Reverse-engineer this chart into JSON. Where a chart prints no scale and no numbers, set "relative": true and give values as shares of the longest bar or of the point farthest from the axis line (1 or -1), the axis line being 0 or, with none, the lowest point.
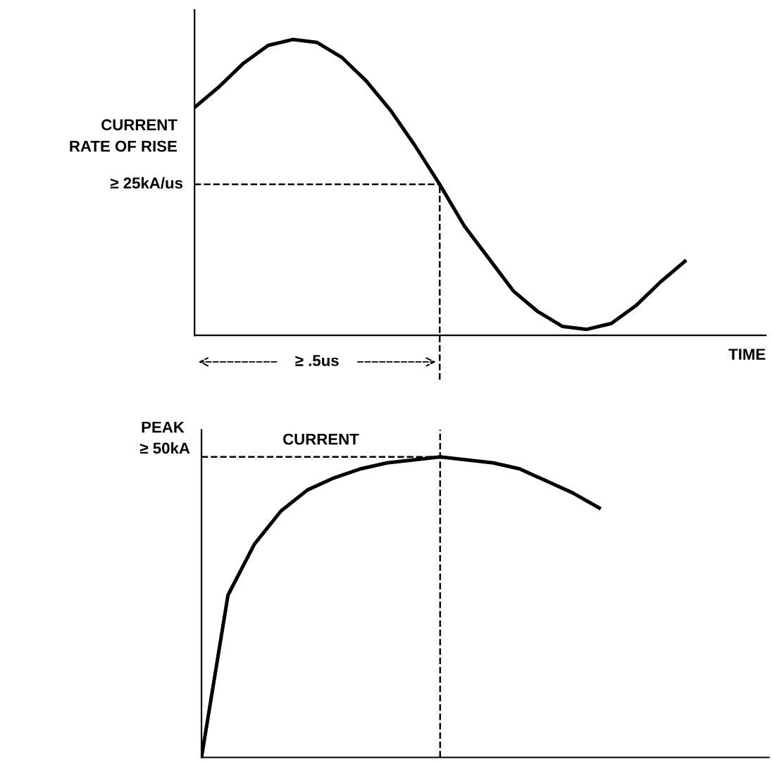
{
  "chart_data": [
    {
      "type": "line",
      "relative": true,
      "ylabel": "CURRENT\nRATE OF RISE",
      "xlabel": "TIME",
      "categories": [
        null,
        null,
        null,
        null,
        null,
        null,
        null,
        null,
        null,
        null,
        null,
        null,
        null,
        null,
        null,
        null,
        null,
        null,
        null,
        null,
        null
      ],
      "series": [
        {
          "color": "#000000",
          "values": [
            0.77,
            0.84,
            0.92,
            0.98,
            1,
            0.99,
            0.94,
            0.86,
            0.76,
            0.64,
            0.51,
            0.37,
            0.26,
            0.15,
            0.08,
            0.03,
            0.02,
            0.04,
            0.1,
            0.18,
            0.25
          ]
        }
      ],
      "ref_lines": [
        {
          "axis": "y",
          "value": 0.51,
          "label": "≥ 25kA/us",
          "line_style": "dashed",
          "color": "#000000"
        }
      ],
      "annotations": [
        "≥ .5us"
      ],
      "grid": false,
      "legend": false,
      "marker": "none",
      "line_style": "solid"
    },
    {
      "type": "line",
      "relative": true,
      "ylabel": "PEAK",
      "categories": [
        null,
        null,
        null,
        null,
        null,
        null,
        null,
        null,
        null,
        null,
        null,
        null,
        null,
        null,
        null,
        null
      ],
      "series": [
        {
          "color": "#000000",
          "values": [
            0,
            0.54,
            0.71,
            0.82,
            0.89,
            0.93,
            0.96,
            0.98,
            0.99,
            1,
            0.99,
            0.98,
            0.96,
            0.92,
            0.88,
            0.83
          ]
        }
      ],
      "ref_lines": [
        {
          "axis": "y",
          "value": 1,
          "label": "≥ 50kA",
          "line_style": "dashed",
          "color": "#000000"
        }
      ],
      "annotations": [
        "CURRENT"
      ],
      "grid": false,
      "legend": false,
      "marker": "none",
      "line_style": "solid"
    }
  ]
}
